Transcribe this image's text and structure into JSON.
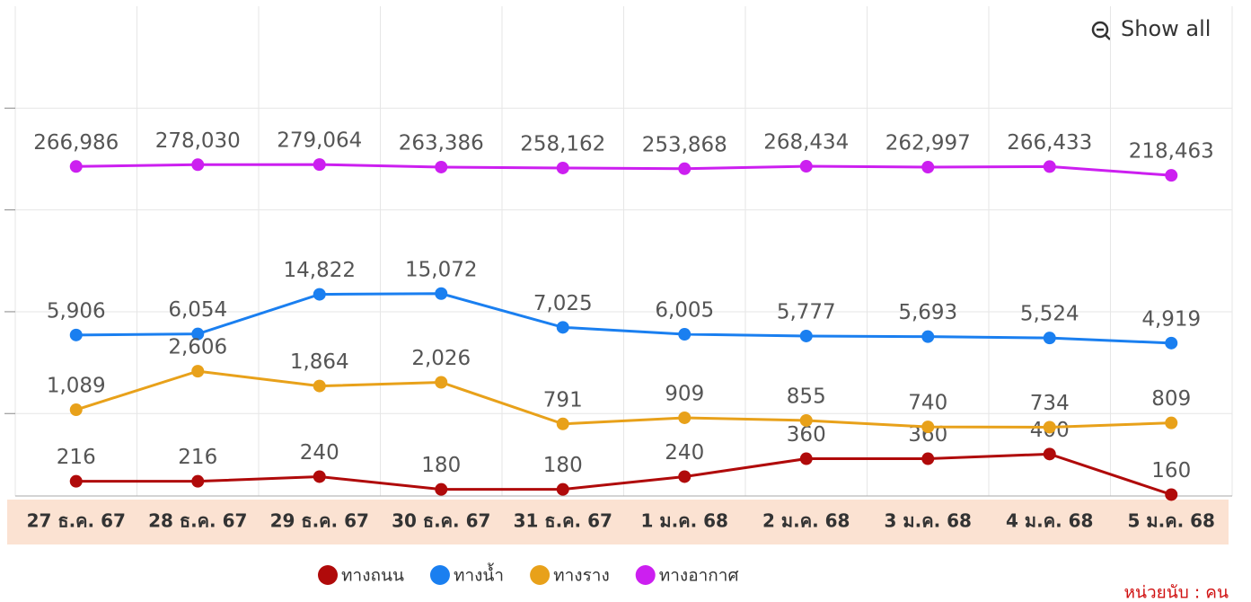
{
  "chart_data": {
    "type": "line",
    "categories": [
      "27 ธ.ค. 67",
      "28 ธ.ค. 67",
      "29 ธ.ค. 67",
      "30 ธ.ค. 67",
      "31 ธ.ค. 67",
      "1 ม.ค. 68",
      "2 ม.ค. 68",
      "3 ม.ค. 68",
      "4 ม.ค. 68",
      "5 ม.ค. 68"
    ],
    "series": [
      {
        "name": "ทางถนน",
        "color": "#b00a0a",
        "values": [
          216,
          216,
          240,
          180,
          180,
          240,
          360,
          360,
          400,
          160
        ],
        "value_labels": [
          "216",
          "216",
          "240",
          "180",
          "180",
          "240",
          "360",
          "360",
          "400",
          "160"
        ]
      },
      {
        "name": "ทางน้ำ",
        "color": "#1a7ff0",
        "values": [
          5906,
          6054,
          14822,
          15072,
          7025,
          6005,
          5777,
          5693,
          5524,
          4919
        ],
        "value_labels": [
          "5,906",
          "6,054",
          "14,822",
          "15,072",
          "7,025",
          "6,005",
          "5,777",
          "5,693",
          "5,524",
          "4,919"
        ]
      },
      {
        "name": "ทางราง",
        "color": "#e8a11a",
        "values": [
          1089,
          2606,
          1864,
          2026,
          791,
          909,
          855,
          740,
          734,
          809
        ],
        "value_labels": [
          "1,089",
          "2,606",
          "1,864",
          "2,026",
          "791",
          "909",
          "855",
          "740",
          "734",
          "809"
        ]
      },
      {
        "name": "ทางอากาศ",
        "color": "#cc1ff0",
        "values": [
          266986,
          278030,
          279064,
          263386,
          258162,
          253868,
          268434,
          262997,
          266433,
          218463
        ],
        "value_labels": [
          "266,986",
          "278,030",
          "279,064",
          "263,386",
          "258,162",
          "253,868",
          "268,434",
          "262,997",
          "266,433",
          "218,463"
        ]
      }
    ],
    "log_scale": true,
    "ylim": [
      155,
      10000000
    ],
    "yticks": [
      1000,
      10000,
      100000,
      1000000
    ],
    "grid": true,
    "legend": "bottom",
    "button": "Show all",
    "unit_note": "หน่วยนับ : คน"
  }
}
